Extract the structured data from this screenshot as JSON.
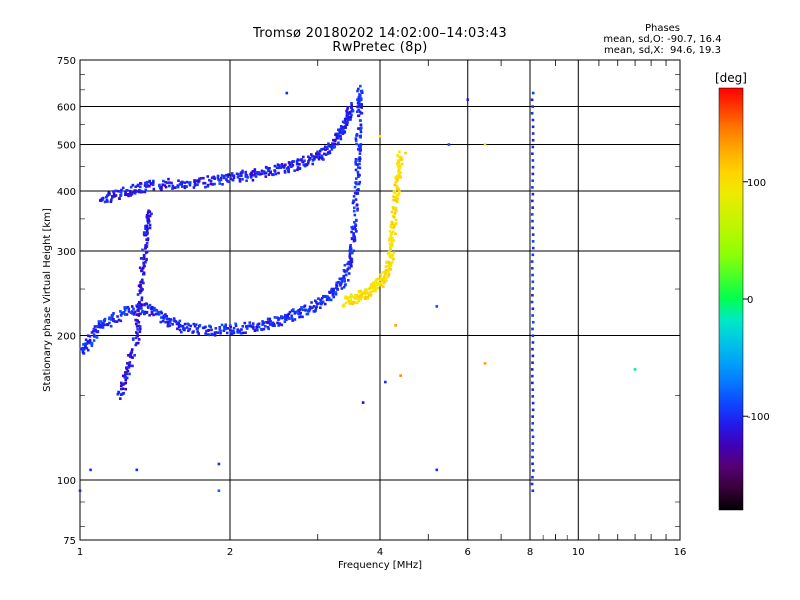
{
  "header": {
    "title_line1": "Tromsø 20180202 14:02:00–14:03:43",
    "title_line2": "RwPretec (8p)"
  },
  "stats": {
    "label": "Phases",
    "o_mode": "mean, sd,O: -90.7, 16.4",
    "x_mode": "mean, sd,X:  94.6, 19.3"
  },
  "colorbar": {
    "unit": "[deg]",
    "ticks": [
      100,
      0,
      -100
    ],
    "range": [
      -180,
      180
    ],
    "top_color": "#ff0000",
    "bottom_color": "#000000"
  },
  "chart_data": {
    "type": "scatter",
    "title": "Tromsø 20180202 14:02:00–14:03:43",
    "subtitle": "RwPretec (8p)",
    "xlabel": "Frequency [MHz]",
    "ylabel": "Stationary phase Virtual Height [km]",
    "x_scale": "log",
    "y_scale": "log",
    "xlim": [
      1,
      16
    ],
    "ylim": [
      75,
      750
    ],
    "x_ticks": [
      1,
      2,
      4,
      6,
      8,
      10,
      16
    ],
    "y_ticks": [
      75,
      100,
      200,
      300,
      400,
      500,
      600,
      750
    ],
    "grid": true,
    "color_variable": "phase [deg]",
    "traces": [
      {
        "name_hint": "O-mode low",
        "phase": -100,
        "points": [
          [
            1.0,
            185
          ],
          [
            1.05,
            195
          ],
          [
            1.1,
            210
          ],
          [
            1.2,
            220
          ],
          [
            1.3,
            230
          ],
          [
            1.4,
            225
          ],
          [
            1.5,
            215
          ],
          [
            1.6,
            208
          ],
          [
            1.8,
            205
          ],
          [
            2.0,
            206
          ],
          [
            2.2,
            208
          ],
          [
            2.4,
            212
          ],
          [
            2.6,
            218
          ],
          [
            2.8,
            224
          ],
          [
            3.0,
            232
          ],
          [
            3.2,
            245
          ],
          [
            3.4,
            262
          ],
          [
            3.5,
            290
          ],
          [
            3.55,
            340
          ],
          [
            3.6,
            420
          ],
          [
            3.62,
            500
          ],
          [
            3.64,
            600
          ],
          [
            3.65,
            650
          ]
        ]
      },
      {
        "name_hint": "O-mode upper branch",
        "phase": -105,
        "points": [
          [
            1.1,
            380
          ],
          [
            1.2,
            395
          ],
          [
            1.3,
            405
          ],
          [
            1.4,
            412
          ],
          [
            1.6,
            415
          ],
          [
            1.8,
            418
          ],
          [
            2.0,
            425
          ],
          [
            2.2,
            432
          ],
          [
            2.4,
            440
          ],
          [
            2.6,
            448
          ],
          [
            2.8,
            458
          ],
          [
            3.0,
            472
          ],
          [
            3.2,
            495
          ],
          [
            3.35,
            530
          ],
          [
            3.45,
            570
          ],
          [
            3.5,
            600
          ]
        ]
      },
      {
        "name_hint": "O-mode cusp",
        "phase": -110,
        "points": [
          [
            1.2,
            150
          ],
          [
            1.25,
            170
          ],
          [
            1.3,
            200
          ],
          [
            1.32,
            240
          ],
          [
            1.34,
            280
          ],
          [
            1.36,
            330
          ],
          [
            1.38,
            360
          ]
        ]
      },
      {
        "name_hint": "X-mode",
        "phase": 100,
        "points": [
          [
            3.4,
            235
          ],
          [
            3.6,
            240
          ],
          [
            3.8,
            245
          ],
          [
            3.95,
            255
          ],
          [
            4.1,
            265
          ],
          [
            4.2,
            290
          ],
          [
            4.25,
            330
          ],
          [
            4.3,
            380
          ],
          [
            4.35,
            430
          ],
          [
            4.4,
            480
          ]
        ]
      }
    ],
    "vertical_interference": [
      {
        "x": 8.1,
        "y_range": [
          95,
          640
        ],
        "phase": -100
      }
    ],
    "scattered": [
      [
        2.6,
        640,
        -100
      ],
      [
        6.0,
        620,
        -110
      ],
      [
        4.0,
        520,
        100
      ],
      [
        4.5,
        480,
        110
      ],
      [
        5.5,
        500,
        -90
      ],
      [
        6.5,
        500,
        100
      ],
      [
        4.3,
        210,
        130
      ],
      [
        5.2,
        230,
        -90
      ],
      [
        5.2,
        105,
        -100
      ],
      [
        6.5,
        175,
        130
      ],
      [
        13,
        170,
        -10
      ],
      [
        1.9,
        108,
        -100
      ],
      [
        1.05,
        105,
        -100
      ],
      [
        1.3,
        105,
        -100
      ],
      [
        3.7,
        145,
        -120
      ],
      [
        4.1,
        160,
        -100
      ],
      [
        4.4,
        165,
        140
      ],
      [
        1.9,
        95,
        -80
      ],
      [
        1.0,
        95,
        -100
      ]
    ]
  }
}
